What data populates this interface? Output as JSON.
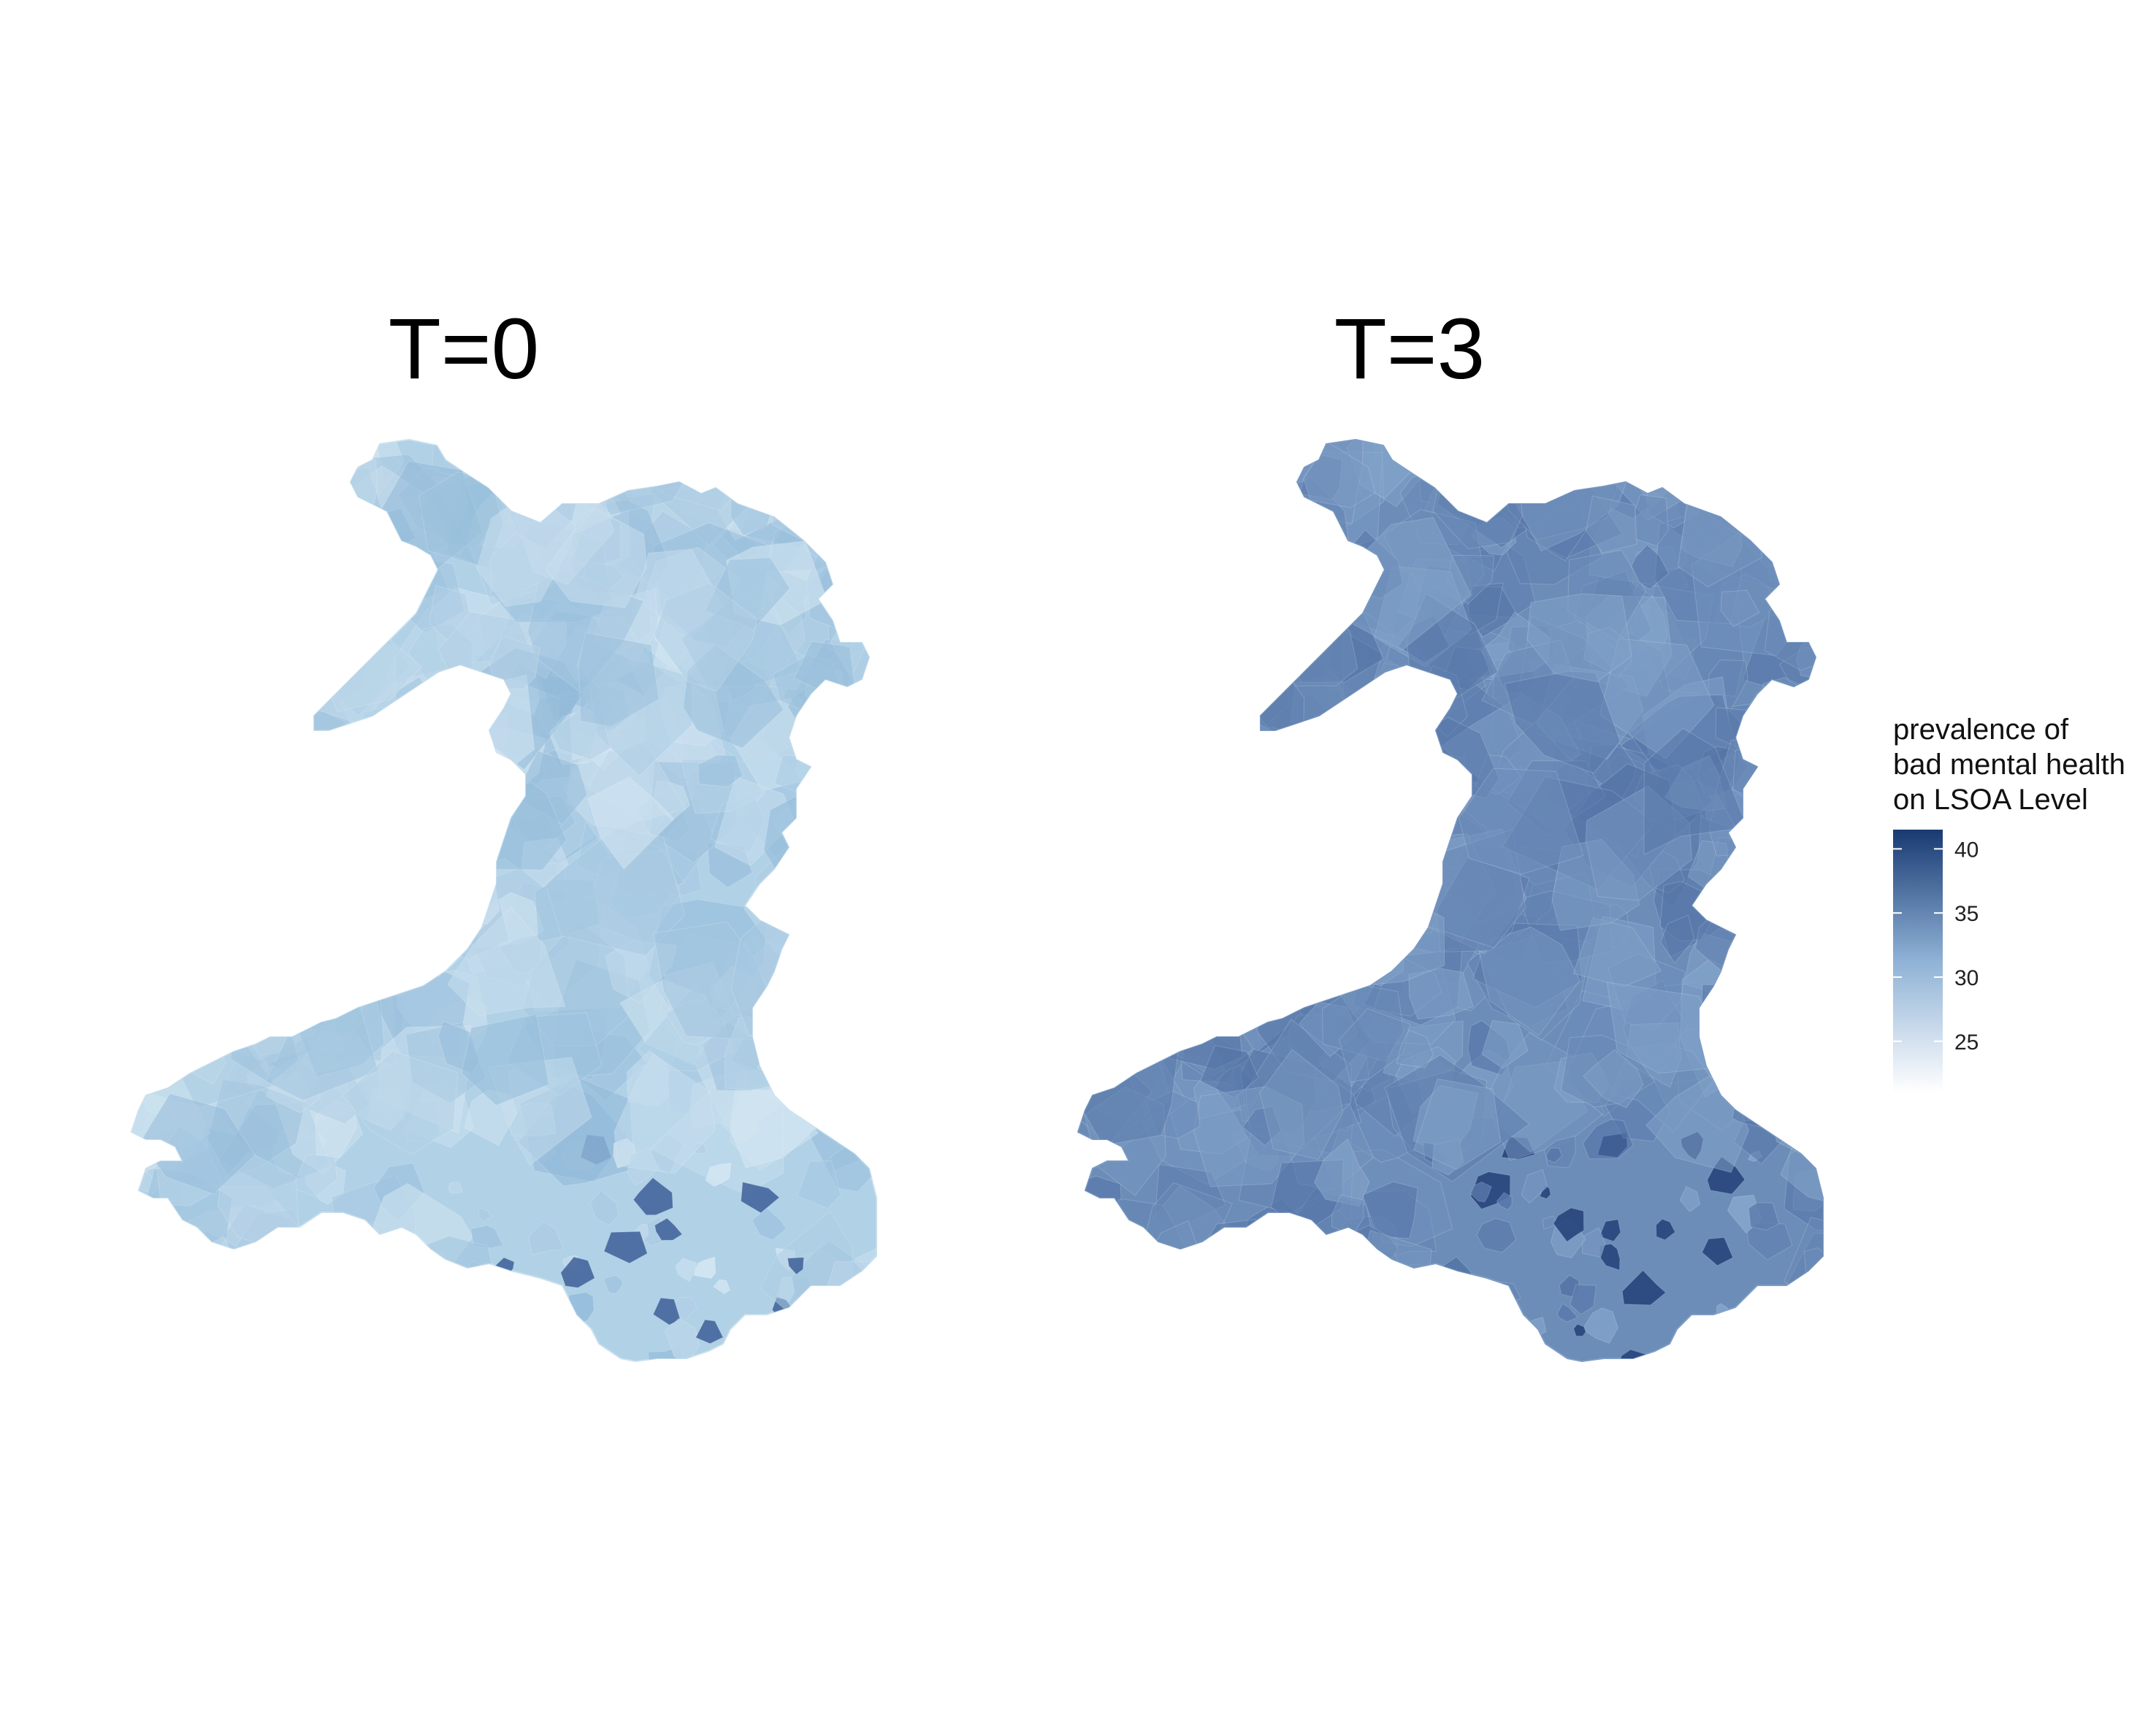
{
  "figure": {
    "panels": [
      {
        "title": "T=0",
        "base_color": "#b0d1e6",
        "color_range": [
          "#d6e8f3",
          "#8fb8d8"
        ],
        "dark_spots": "#3e5f98",
        "typical_value": 25
      },
      {
        "title": "T=3",
        "base_color": "#6b8db8",
        "color_range": [
          "#86a7cc",
          "#4f6fa3"
        ],
        "dark_spots": "#233f78",
        "typical_value": 31
      }
    ],
    "legend": {
      "title_lines": [
        "prevalence of",
        "bad mental health",
        "on LSOA Level"
      ],
      "ticks": [
        "40",
        "35",
        "30",
        "25"
      ],
      "tick_values": [
        40,
        35,
        30,
        25
      ],
      "min": 21,
      "max": 41.5,
      "color_low": "#ffffff",
      "color_mid": "#8fb2d6",
      "color_high": "#193a72"
    }
  }
}
